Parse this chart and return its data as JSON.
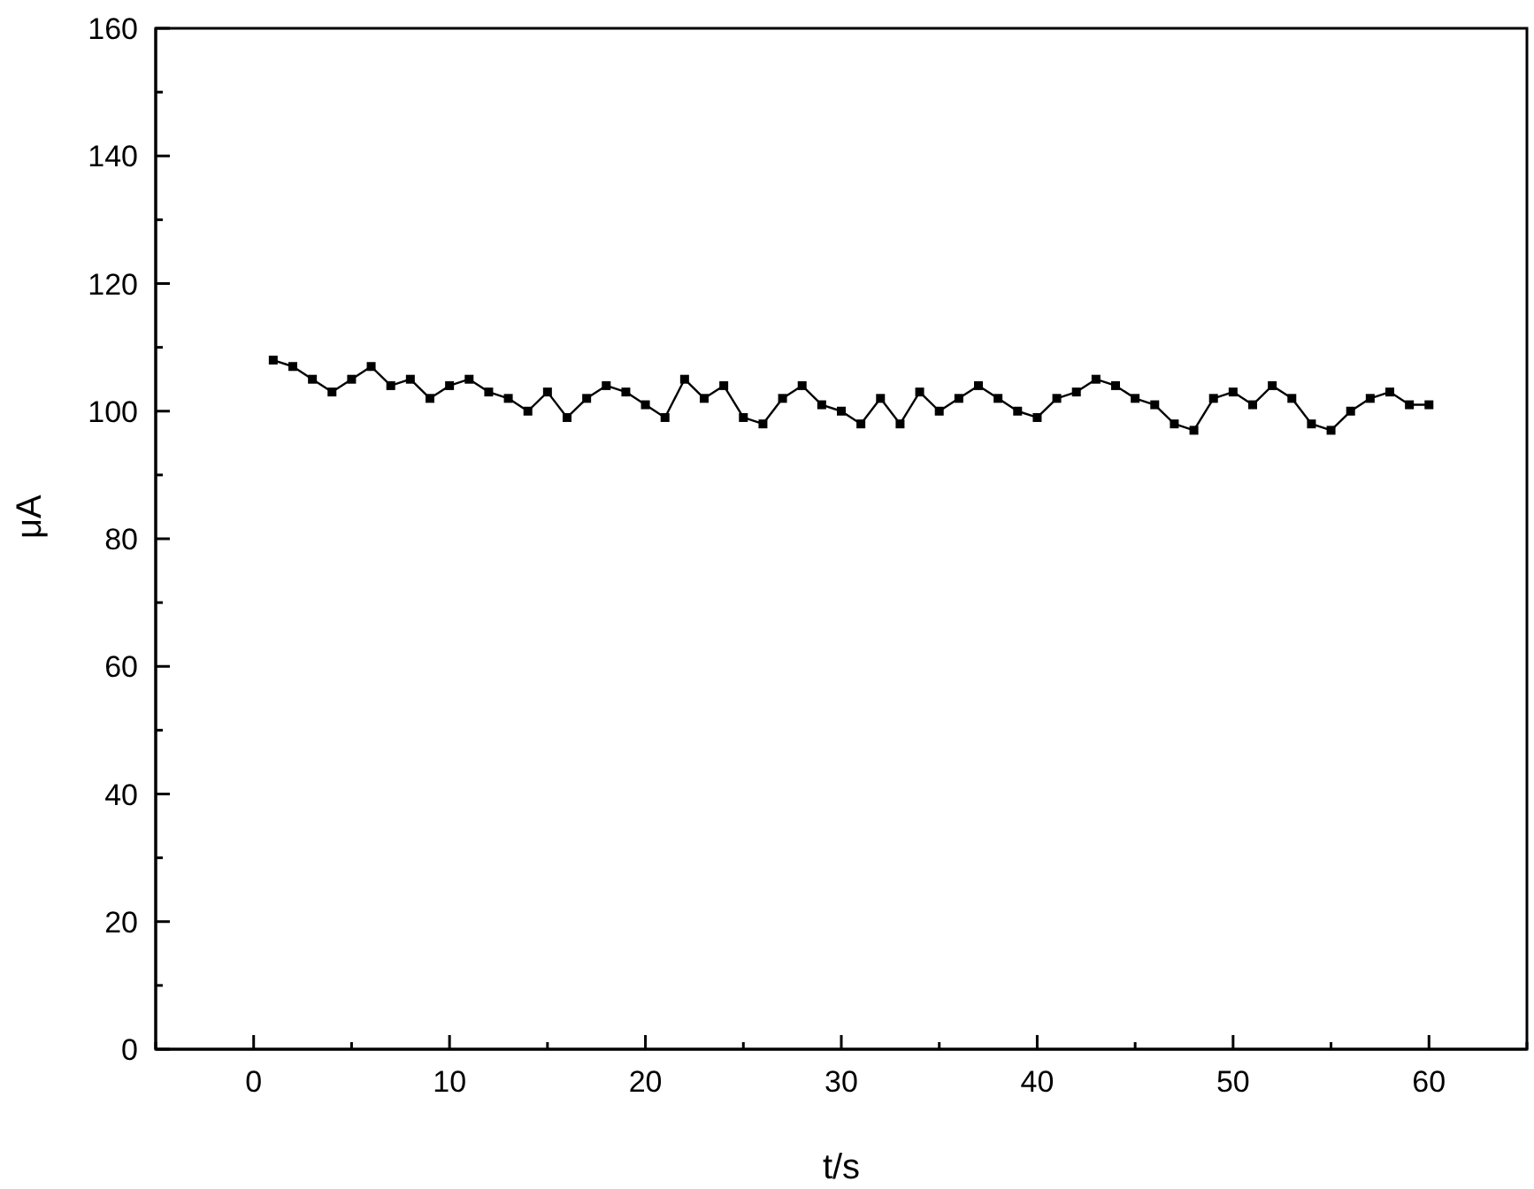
{
  "chart_data": {
    "type": "line",
    "xlabel": "t/s",
    "ylabel": "μA",
    "x": [
      1,
      2,
      3,
      4,
      5,
      6,
      7,
      8,
      9,
      10,
      11,
      12,
      13,
      14,
      15,
      16,
      17,
      18,
      19,
      20,
      21,
      22,
      23,
      24,
      25,
      26,
      27,
      28,
      29,
      30,
      31,
      32,
      33,
      34,
      35,
      36,
      37,
      38,
      39,
      40,
      41,
      42,
      43,
      44,
      45,
      46,
      47,
      48,
      49,
      50,
      51,
      52,
      53,
      54,
      55,
      56,
      57,
      58,
      59,
      60
    ],
    "series": [
      {
        "color": "#000000",
        "values": [
          108,
          107,
          105,
          103,
          105,
          107,
          104,
          105,
          102,
          104,
          105,
          103,
          102,
          100,
          103,
          99,
          102,
          104,
          103,
          101,
          99,
          105,
          102,
          104,
          99,
          98,
          102,
          104,
          101,
          100,
          98,
          102,
          98,
          103,
          100,
          102,
          104,
          102,
          100,
          99,
          102,
          103,
          105,
          104,
          102,
          101,
          98,
          97,
          102,
          103,
          101,
          104,
          102,
          98,
          97,
          100,
          102,
          103,
          101,
          101
        ]
      }
    ],
    "xlim": [
      -5,
      65
    ],
    "xticks": [
      {
        "value": -5,
        "label": null
      },
      0,
      {
        "value": 5,
        "label": null
      },
      10,
      {
        "value": 15,
        "label": null
      },
      20,
      {
        "value": 25,
        "label": null
      },
      30,
      {
        "value": 35,
        "label": null
      },
      40,
      {
        "value": 45,
        "label": null
      },
      50,
      {
        "value": 55,
        "label": null
      },
      60,
      {
        "value": 65,
        "label": null
      }
    ],
    "ylim": [
      0,
      160
    ],
    "yticks": [
      0,
      {
        "value": 10,
        "label": null
      },
      20,
      {
        "value": 30,
        "label": null
      },
      40,
      {
        "value": 50,
        "label": null
      },
      60,
      {
        "value": 70,
        "label": null
      },
      80,
      {
        "value": 90,
        "label": null
      },
      100,
      {
        "value": 110,
        "label": null
      },
      120,
      {
        "value": 130,
        "label": null
      },
      140,
      {
        "value": 150,
        "label": null
      },
      160
    ],
    "marker": "square",
    "line_style": "solid",
    "grid": false,
    "legend": false
  }
}
